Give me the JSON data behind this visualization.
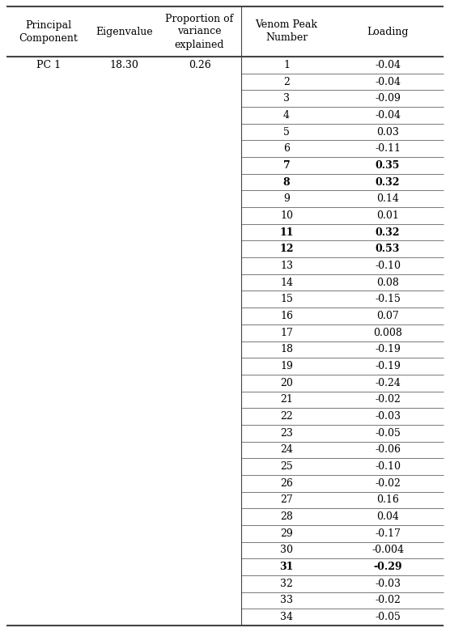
{
  "col_headers": [
    "Principal\nComponent",
    "Eigenvalue",
    "Proportion of\nvariance\nexplained",
    "Venom Peak\nNumber",
    "Loading"
  ],
  "pc1_label": "PC 1",
  "pc1_eigenvalue": "18.30",
  "pc1_proportion": "0.26",
  "rows": [
    {
      "peak": "1",
      "loading": "-0.04",
      "bold": false
    },
    {
      "peak": "2",
      "loading": "-0.04",
      "bold": false
    },
    {
      "peak": "3",
      "loading": "-0.09",
      "bold": false
    },
    {
      "peak": "4",
      "loading": "-0.04",
      "bold": false
    },
    {
      "peak": "5",
      "loading": "0.03",
      "bold": false
    },
    {
      "peak": "6",
      "loading": "-0.11",
      "bold": false
    },
    {
      "peak": "7",
      "loading": "0.35",
      "bold": true
    },
    {
      "peak": "8",
      "loading": "0.32",
      "bold": true
    },
    {
      "peak": "9",
      "loading": "0.14",
      "bold": false
    },
    {
      "peak": "10",
      "loading": "0.01",
      "bold": false
    },
    {
      "peak": "11",
      "loading": "0.32",
      "bold": true
    },
    {
      "peak": "12",
      "loading": "0.53",
      "bold": true
    },
    {
      "peak": "13",
      "loading": "-0.10",
      "bold": false
    },
    {
      "peak": "14",
      "loading": "0.08",
      "bold": false
    },
    {
      "peak": "15",
      "loading": "-0.15",
      "bold": false
    },
    {
      "peak": "16",
      "loading": "0.07",
      "bold": false
    },
    {
      "peak": "17",
      "loading": "0.008",
      "bold": false
    },
    {
      "peak": "18",
      "loading": "-0.19",
      "bold": false
    },
    {
      "peak": "19",
      "loading": "-0.19",
      "bold": false
    },
    {
      "peak": "20",
      "loading": "-0.24",
      "bold": false
    },
    {
      "peak": "21",
      "loading": "-0.02",
      "bold": false
    },
    {
      "peak": "22",
      "loading": "-0.03",
      "bold": false
    },
    {
      "peak": "23",
      "loading": "-0.05",
      "bold": false
    },
    {
      "peak": "24",
      "loading": "-0.06",
      "bold": false
    },
    {
      "peak": "25",
      "loading": "-0.10",
      "bold": false
    },
    {
      "peak": "26",
      "loading": "-0.02",
      "bold": false
    },
    {
      "peak": "27",
      "loading": "0.16",
      "bold": false
    },
    {
      "peak": "28",
      "loading": "0.04",
      "bold": false
    },
    {
      "peak": "29",
      "loading": "-0.17",
      "bold": false
    },
    {
      "peak": "30",
      "loading": "-0.004",
      "bold": false
    },
    {
      "peak": "31",
      "loading": "-0.29",
      "bold": true
    },
    {
      "peak": "32",
      "loading": "-0.03",
      "bold": false
    },
    {
      "peak": "33",
      "loading": "-0.02",
      "bold": false
    },
    {
      "peak": "34",
      "loading": "-0.05",
      "bold": false
    }
  ],
  "background_color": "#ffffff",
  "text_color": "#000000",
  "line_color": "#444444",
  "font_size": 9,
  "header_font_size": 9,
  "fig_width": 5.56,
  "fig_height": 7.81,
  "dpi": 100
}
